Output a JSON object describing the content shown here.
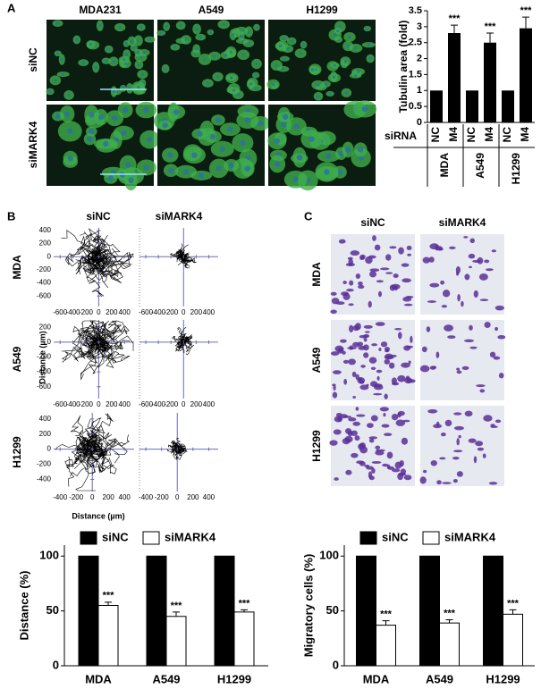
{
  "figure": {
    "panels": [
      "A",
      "B",
      "C"
    ],
    "microscopy": {
      "columns": [
        "MDA231",
        "A549",
        "H1299"
      ],
      "rows": [
        "siNC",
        "siMARK4"
      ]
    },
    "tracks": {
      "columns": [
        "siNC",
        "siMARK4"
      ],
      "y_label": "Distance (µm)",
      "x_label": "Distance (µm)",
      "rows": [
        {
          "label": "MDA",
          "xlim": [
            -700,
            550
          ],
          "ylim": [
            -760,
            440
          ],
          "xticks": [
            -600,
            -400,
            -200,
            0,
            200,
            400
          ],
          "yticks": [
            400,
            200,
            0,
            -200,
            -400,
            -600
          ]
        },
        {
          "label": "A549",
          "xlim": [
            -700,
            550
          ],
          "ylim": [
            -760,
            300
          ],
          "xticks": [
            -600,
            -400,
            -200,
            0,
            200,
            400
          ],
          "yticks": [
            200,
            0,
            -200,
            -400,
            -600
          ]
        },
        {
          "label": "H1299",
          "xlim": [
            -480,
            520
          ],
          "ylim": [
            -560,
            480
          ],
          "xticks": [
            -400,
            -200,
            0,
            200,
            400
          ],
          "yticks": [
            400,
            200,
            0,
            -200,
            -400
          ]
        }
      ]
    },
    "transwell": {
      "columns": [
        "siNC",
        "siMARK4"
      ],
      "rows": [
        "MDA",
        "A549",
        "H1299"
      ]
    }
  },
  "chart_data": [
    {
      "type": "bar",
      "y_label": "Tubulin area (fold)",
      "x_label": "siRNA",
      "categories": [
        "NC",
        "M4",
        "NC",
        "M4",
        "NC",
        "M4"
      ],
      "groups": [
        "MDA",
        "A549",
        "H1299"
      ],
      "values": [
        1,
        2.8,
        1,
        2.5,
        1,
        2.95
      ],
      "errors": [
        null,
        0.25,
        null,
        0.3,
        null,
        0.35
      ],
      "annotations": [
        null,
        "***",
        null,
        "***",
        null,
        "***"
      ],
      "color": "#000000",
      "ylim": [
        0,
        3.5
      ],
      "yticks": [
        0,
        0.5,
        1,
        1.5,
        2,
        2.5,
        3,
        3.5
      ]
    },
    {
      "type": "grouped-bar",
      "y_label": "Distance (%)",
      "categories": [
        "MDA",
        "A549",
        "H1299"
      ],
      "series": [
        {
          "name": "siNC",
          "color": "#000000",
          "values": [
            100,
            100,
            100
          ]
        },
        {
          "name": "siMARK4",
          "color": "#ffffff",
          "values": [
            55,
            45,
            49
          ],
          "errors": [
            3,
            4,
            2
          ],
          "annotations": [
            "***",
            "***",
            "***"
          ]
        }
      ],
      "ylim": [
        0,
        110
      ],
      "yticks": [
        0,
        50,
        100
      ]
    },
    {
      "type": "grouped-bar",
      "y_label": "Migratory cells (%)",
      "categories": [
        "MDA",
        "A549",
        "H1299"
      ],
      "series": [
        {
          "name": "siNC",
          "color": "#000000",
          "values": [
            100,
            100,
            100
          ]
        },
        {
          "name": "siMARK4",
          "color": "#ffffff",
          "values": [
            37,
            39,
            47
          ],
          "errors": [
            4,
            3,
            4
          ],
          "annotations": [
            "***",
            "***",
            "***"
          ]
        }
      ],
      "ylim": [
        0,
        110
      ],
      "yticks": [
        0,
        50,
        100
      ]
    }
  ]
}
